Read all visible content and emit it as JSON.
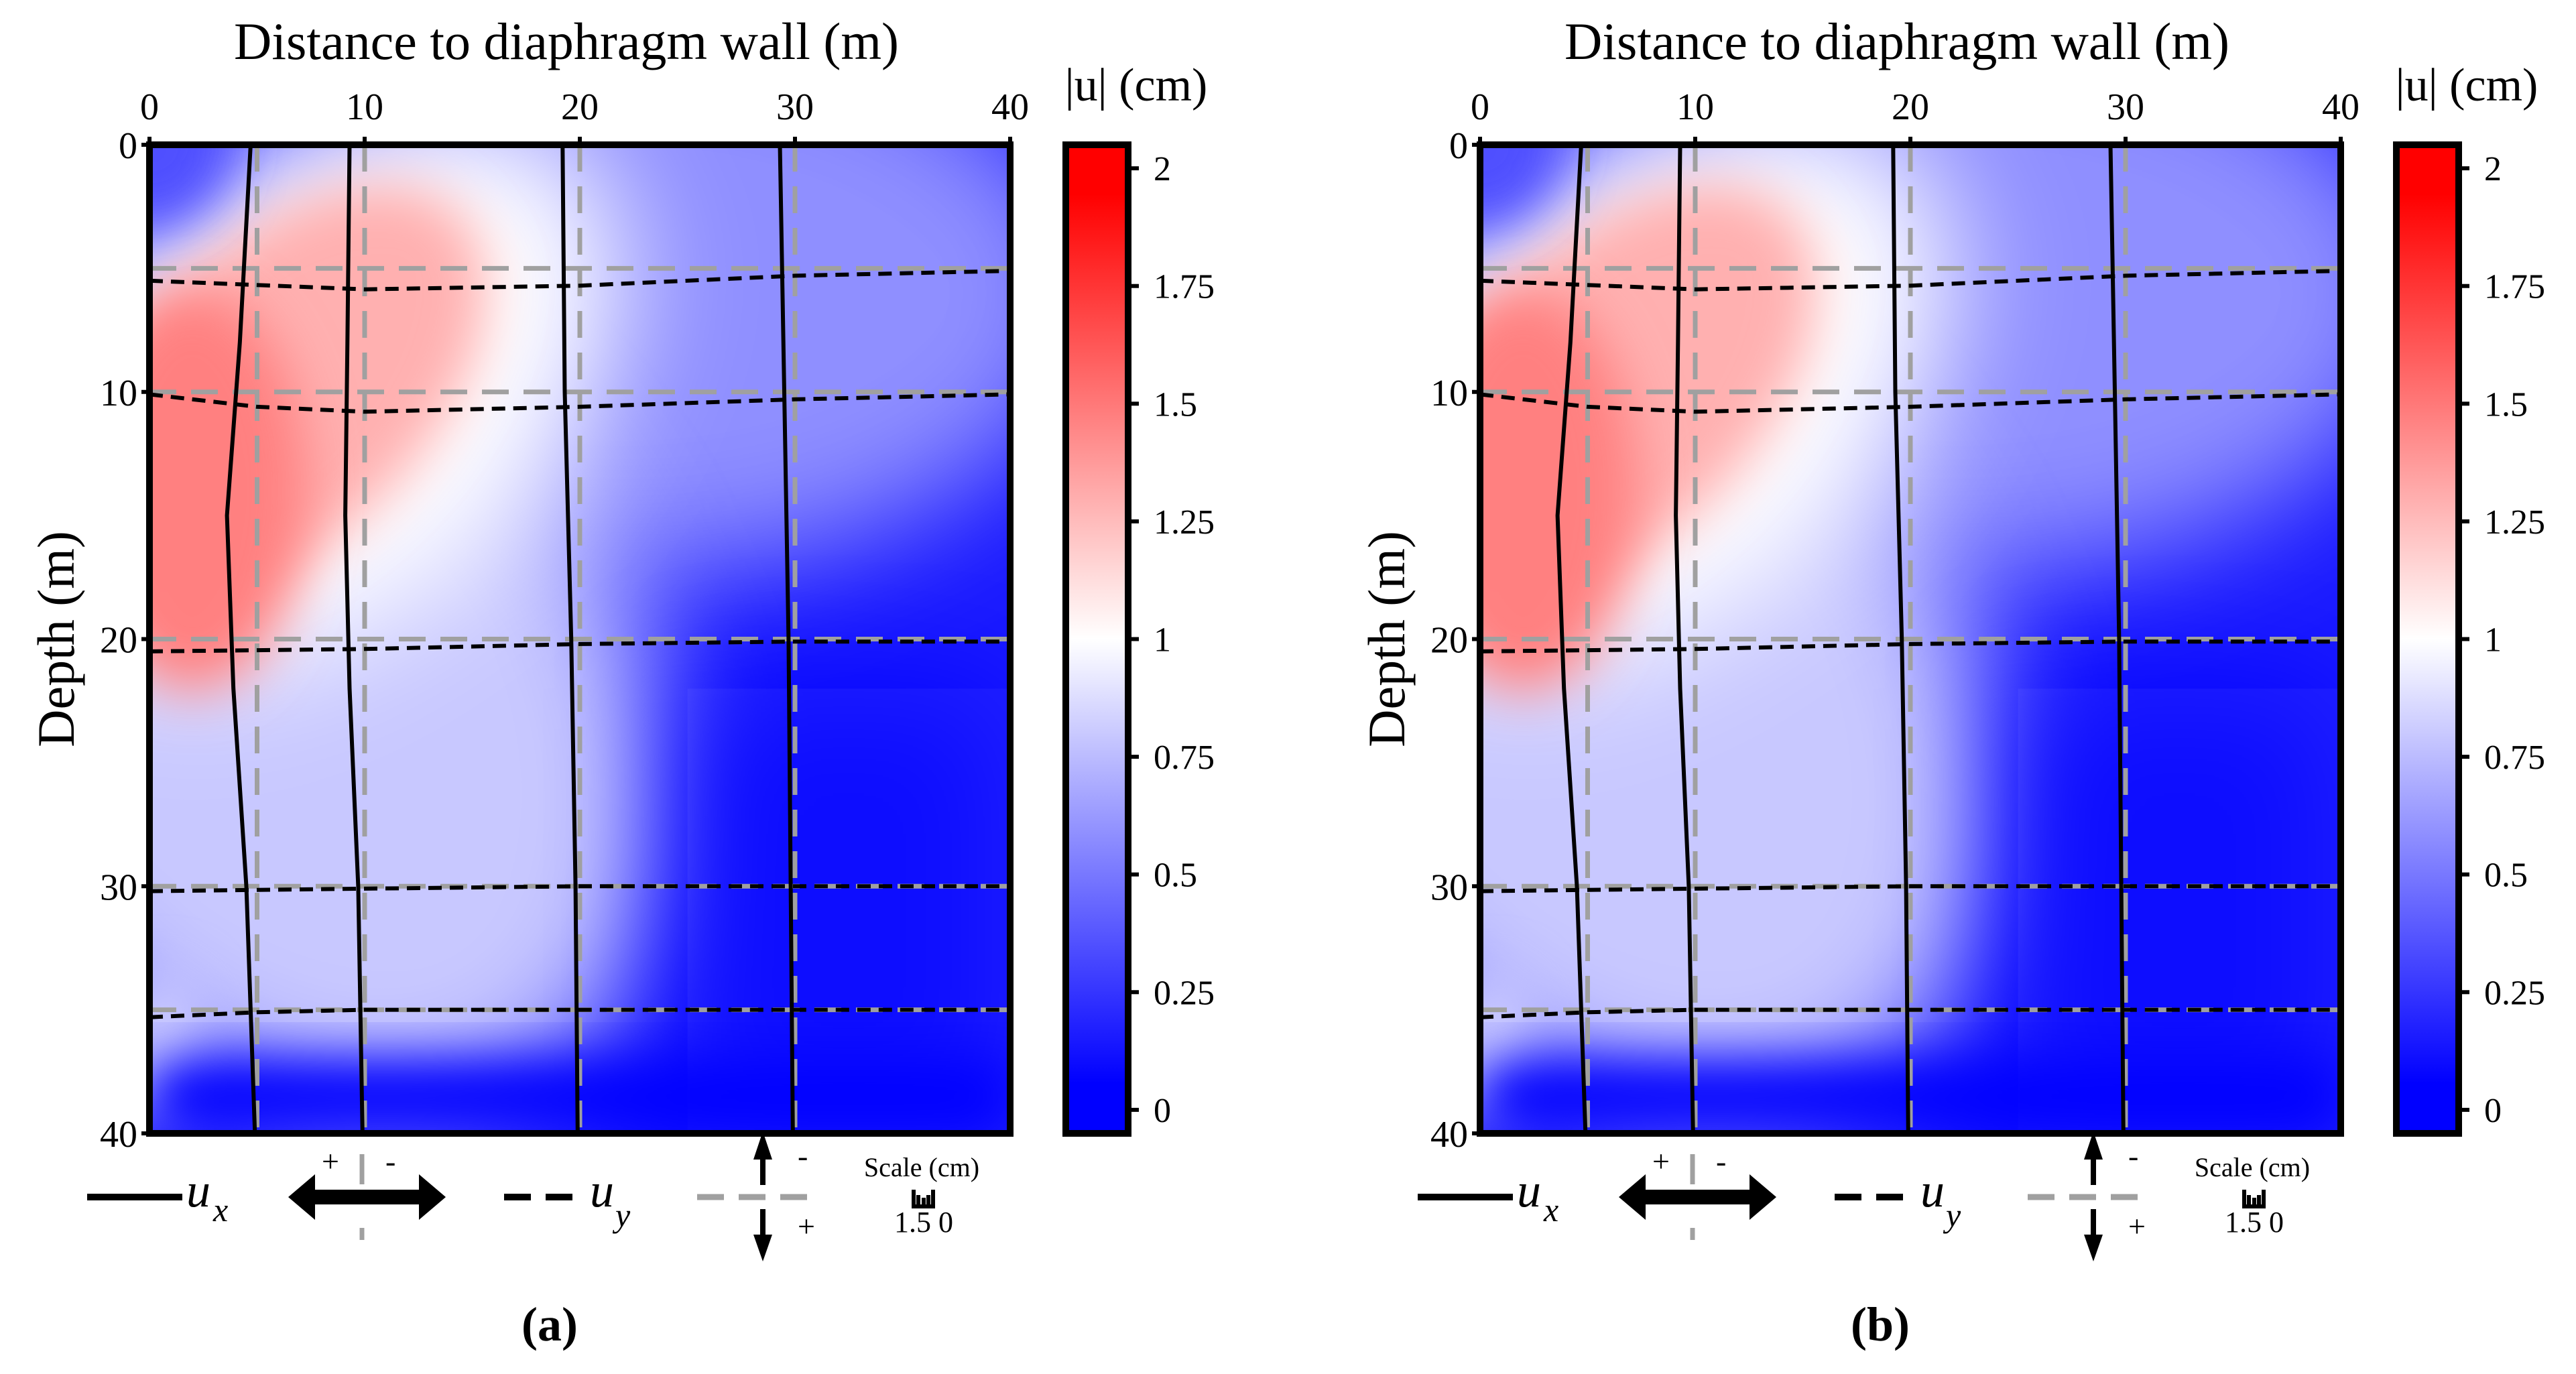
{
  "chart_data": [
    {
      "panel_label": "(a)",
      "type": "heatmap",
      "title": "Distance to diaphragm wall (m)",
      "xlabel": "Distance to diaphragm wall (m)",
      "ylabel": "Depth (m)",
      "xlim": [
        0,
        40
      ],
      "ylim": [
        0,
        40
      ],
      "xticks": [
        "0",
        "10",
        "20",
        "30",
        "40"
      ],
      "yticks": [
        "0",
        "10",
        "20",
        "30",
        "40"
      ],
      "colorbar": {
        "label": "|u| (cm)",
        "range": [
          -0.05,
          2.05
        ],
        "ticks": [
          "0",
          "0.25",
          "0.5",
          "0.75",
          "1",
          "1.25",
          "1.5",
          "1.75",
          "2"
        ],
        "colors": [
          "#0000ff",
          "#ffffff",
          "#ff0000"
        ]
      },
      "grid_x": [
        5,
        10,
        20,
        30
      ],
      "grid_y": [
        5,
        10,
        20,
        30,
        35
      ],
      "ux_lines": [
        [
          [
            4.7,
            0
          ],
          [
            4.2,
            8
          ],
          [
            3.6,
            15
          ],
          [
            3.9,
            22
          ],
          [
            4.5,
            30
          ],
          [
            4.9,
            40
          ]
        ],
        [
          [
            9.3,
            0
          ],
          [
            9.2,
            8
          ],
          [
            9.1,
            15
          ],
          [
            9.3,
            22
          ],
          [
            9.7,
            30
          ],
          [
            9.9,
            40
          ]
        ],
        [
          [
            19.2,
            0
          ],
          [
            19.3,
            10
          ],
          [
            19.6,
            20
          ],
          [
            19.8,
            30
          ],
          [
            19.9,
            40
          ]
        ],
        [
          [
            29.3,
            0
          ],
          [
            29.5,
            10
          ],
          [
            29.7,
            20
          ],
          [
            29.8,
            30
          ],
          [
            29.9,
            40
          ]
        ]
      ],
      "uy_lines": [
        [
          [
            0,
            5.5
          ],
          [
            10,
            5.85
          ],
          [
            20,
            5.7
          ],
          [
            30,
            5.3
          ],
          [
            40,
            5.1
          ]
        ],
        [
          [
            0,
            10.1
          ],
          [
            5,
            10.6
          ],
          [
            10,
            10.8
          ],
          [
            20,
            10.6
          ],
          [
            30,
            10.3
          ],
          [
            40,
            10.1
          ]
        ],
        [
          [
            0,
            20.5
          ],
          [
            10,
            20.4
          ],
          [
            20,
            20.2
          ],
          [
            30,
            20.1
          ],
          [
            40,
            20.1
          ]
        ],
        [
          [
            0,
            30.2
          ],
          [
            10,
            30.1
          ],
          [
            20,
            30.0
          ],
          [
            40,
            30.0
          ]
        ],
        [
          [
            0,
            35.3
          ],
          [
            5,
            35.1
          ],
          [
            10,
            35.0
          ],
          [
            40,
            35.0
          ]
        ]
      ],
      "legend": {
        "ux": "u",
        "ux_sub": "x",
        "uy": "u",
        "uy_sub": "y",
        "plus": "+",
        "minus": "-",
        "scale_label": "Scale (cm)",
        "scale_values": "1.5 0"
      }
    },
    {
      "panel_label": "(b)",
      "type": "heatmap",
      "title": "Distance to diaphragm wall (m)",
      "xlabel": "Distance to diaphragm wall (m)",
      "ylabel": "Depth (m)",
      "xlim": [
        0,
        40
      ],
      "ylim": [
        0,
        40
      ],
      "xticks": [
        "0",
        "10",
        "20",
        "30",
        "40"
      ],
      "yticks": [
        "0",
        "10",
        "20",
        "30",
        "40"
      ],
      "colorbar": {
        "label": "|u| (cm)",
        "range": [
          -0.05,
          2.05
        ],
        "ticks": [
          "0",
          "0.25",
          "0.5",
          "0.75",
          "1",
          "1.25",
          "1.5",
          "1.75",
          "2"
        ],
        "colors": [
          "#0000ff",
          "#ffffff",
          "#ff0000"
        ]
      },
      "grid_x": [
        5,
        10,
        20,
        30
      ],
      "grid_y": [
        5,
        10,
        20,
        30,
        35
      ],
      "ux_lines": [
        [
          [
            4.7,
            0
          ],
          [
            4.2,
            8
          ],
          [
            3.6,
            15
          ],
          [
            3.9,
            22
          ],
          [
            4.5,
            30
          ],
          [
            4.9,
            40
          ]
        ],
        [
          [
            9.3,
            0
          ],
          [
            9.2,
            8
          ],
          [
            9.1,
            15
          ],
          [
            9.3,
            22
          ],
          [
            9.7,
            30
          ],
          [
            9.9,
            40
          ]
        ],
        [
          [
            19.2,
            0
          ],
          [
            19.3,
            10
          ],
          [
            19.6,
            20
          ],
          [
            19.8,
            30
          ],
          [
            19.9,
            40
          ]
        ],
        [
          [
            29.3,
            0
          ],
          [
            29.5,
            10
          ],
          [
            29.7,
            20
          ],
          [
            29.8,
            30
          ],
          [
            29.9,
            40
          ]
        ]
      ],
      "uy_lines": [
        [
          [
            0,
            5.5
          ],
          [
            10,
            5.85
          ],
          [
            20,
            5.7
          ],
          [
            30,
            5.3
          ],
          [
            40,
            5.1
          ]
        ],
        [
          [
            0,
            10.1
          ],
          [
            5,
            10.6
          ],
          [
            10,
            10.8
          ],
          [
            20,
            10.6
          ],
          [
            30,
            10.3
          ],
          [
            40,
            10.1
          ]
        ],
        [
          [
            0,
            20.5
          ],
          [
            10,
            20.4
          ],
          [
            20,
            20.2
          ],
          [
            30,
            20.1
          ],
          [
            40,
            20.1
          ]
        ],
        [
          [
            0,
            30.2
          ],
          [
            10,
            30.1
          ],
          [
            20,
            30.0
          ],
          [
            40,
            30.0
          ]
        ],
        [
          [
            0,
            35.3
          ],
          [
            5,
            35.1
          ],
          [
            10,
            35.0
          ],
          [
            40,
            35.0
          ]
        ]
      ],
      "legend": {
        "ux": "u",
        "ux_sub": "x",
        "uy": "u",
        "uy_sub": "y",
        "plus": "+",
        "minus": "-",
        "scale_label": "Scale (cm)",
        "scale_values": "1.5 0"
      }
    }
  ]
}
